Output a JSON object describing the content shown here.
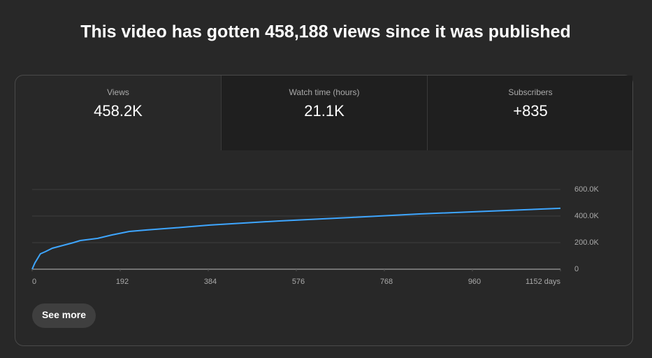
{
  "header": {
    "title": "This video has gotten 458,188 views since it was published"
  },
  "metrics": [
    {
      "label": "Views",
      "value": "458.2K"
    },
    {
      "label": "Watch time (hours)",
      "value": "21.1K"
    },
    {
      "label": "Subscribers",
      "value": "+835"
    }
  ],
  "chart_data": {
    "type": "line",
    "x": [
      0,
      6,
      18,
      29,
      44,
      67,
      90,
      105,
      143,
      174,
      212,
      250,
      311,
      387,
      539,
      692,
      844,
      996,
      1152
    ],
    "series": [
      {
        "color": "#3ea6ff",
        "values": [
          0,
          47000,
          116000,
          132000,
          158000,
          179000,
          200000,
          216000,
          232000,
          258000,
          284000,
          295000,
          311000,
          332000,
          363000,
          389000,
          416000,
          437000,
          458188
        ]
      }
    ],
    "xlim": [
      0,
      1152
    ],
    "xticks": [
      0,
      192,
      384,
      576,
      768,
      960,
      {
        "value": 1152,
        "label": "1152 days"
      }
    ],
    "ylim": [
      0,
      600000
    ],
    "yticks": [
      0,
      {
        "value": 200000,
        "label": "200.0K"
      },
      {
        "value": 400000,
        "label": "400.0K"
      },
      {
        "value": 600000,
        "label": "600.0K"
      }
    ],
    "grid": true
  },
  "button": {
    "label": "See more"
  }
}
